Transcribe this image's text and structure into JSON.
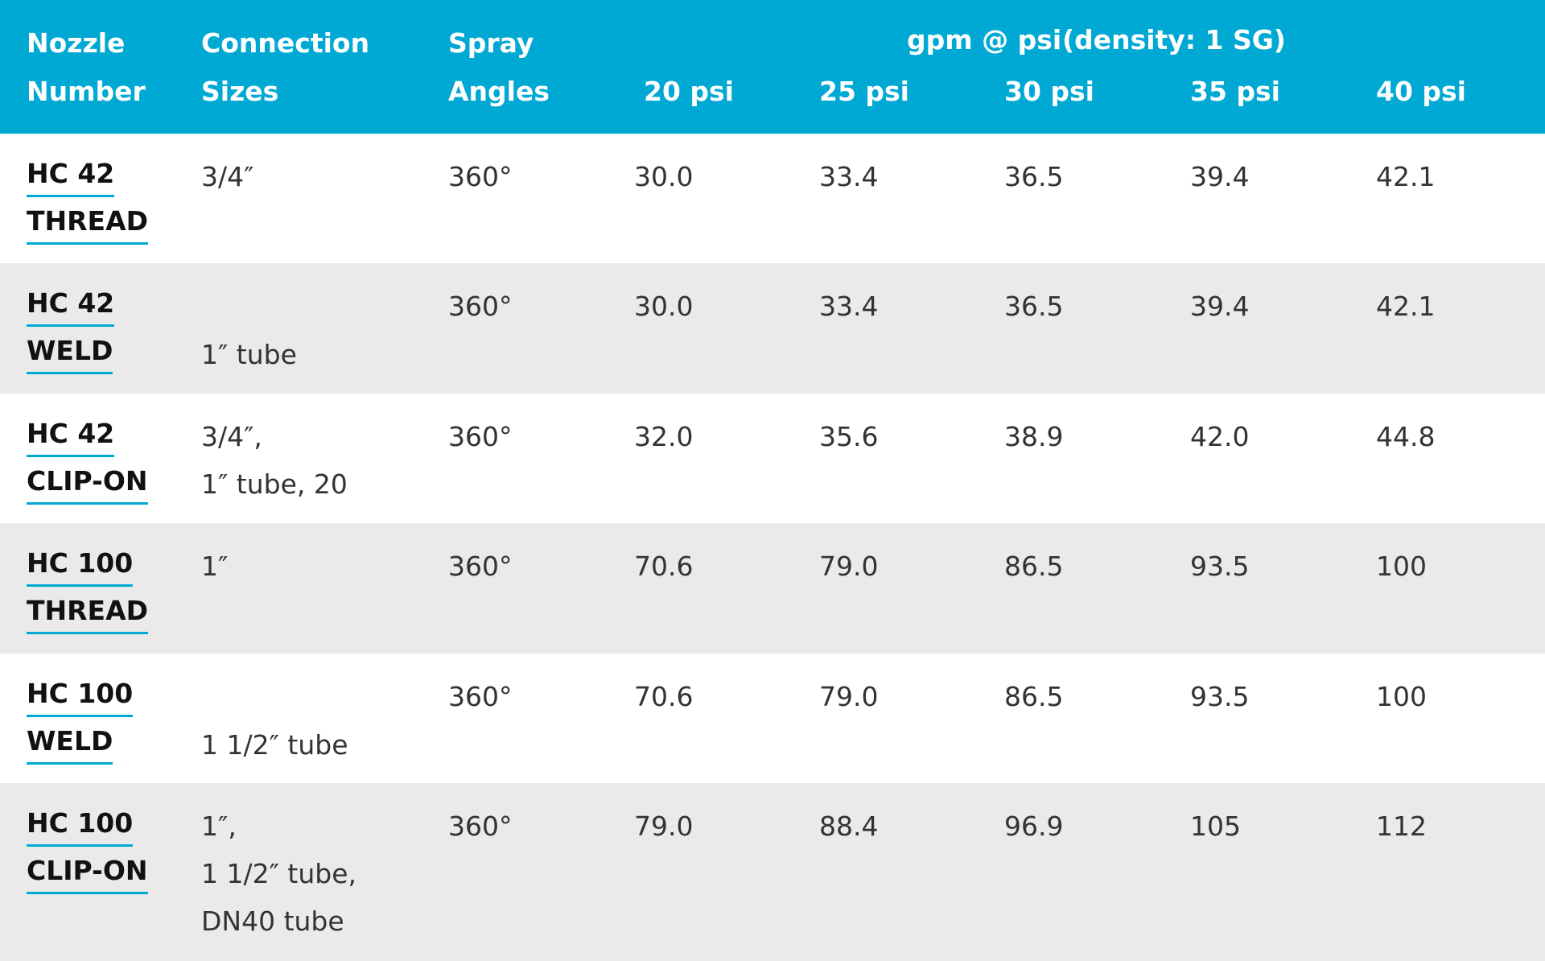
{
  "header": {
    "nozzle_line1": "Nozzle",
    "nozzle_line2": "Number",
    "connection_line1": "Connection",
    "connection_line2": "Sizes",
    "spray_line1": "Spray",
    "spray_line2": "Angles",
    "gpm_label": "gpm @ psi",
    "density_label": "(density: 1 SG)",
    "psi_columns": [
      "20 psi",
      "25 psi",
      "30 psi",
      "35 psi",
      "40 psi"
    ]
  },
  "colors": {
    "header_bg": "#00a9d4",
    "link_underline": "#00a9d4",
    "row_alt_bg": "#eaeaea"
  },
  "rows": [
    {
      "nozzle_line1": "HC 42",
      "nozzle_line2": "THREAD",
      "connection": "3/4″",
      "spray_angle": "360°",
      "values": [
        "30.0",
        "33.4",
        "36.5",
        "39.4",
        "42.1"
      ]
    },
    {
      "nozzle_line1": "HC 42",
      "nozzle_line2": "WELD",
      "connection": "1″ tube",
      "spray_angle": "360°",
      "values": [
        "30.0",
        "33.4",
        "36.5",
        "39.4",
        "42.1"
      ]
    },
    {
      "nozzle_line1": "HC 42",
      "nozzle_line2": "CLIP-ON",
      "connection": "3/4″,\n1″ tube, 20",
      "spray_angle": "360°",
      "values": [
        "32.0",
        "35.6",
        "38.9",
        "42.0",
        "44.8"
      ]
    },
    {
      "nozzle_line1": "HC 100",
      "nozzle_line2": "THREAD",
      "connection": "1″",
      "spray_angle": "360°",
      "values": [
        "70.6",
        "79.0",
        "86.5",
        "93.5",
        "100"
      ]
    },
    {
      "nozzle_line1": "HC 100",
      "nozzle_line2": "WELD",
      "connection": "1 1/2″ tube",
      "spray_angle": "360°",
      "values": [
        "70.6",
        "79.0",
        "86.5",
        "93.5",
        "100"
      ]
    },
    {
      "nozzle_line1": "HC 100",
      "nozzle_line2": "CLIP-ON",
      "connection": "1″,\n1 1/2″ tube,\nDN40 tube",
      "spray_angle": "360°",
      "values": [
        "79.0",
        "88.4",
        "96.9",
        "105",
        "112"
      ]
    }
  ]
}
